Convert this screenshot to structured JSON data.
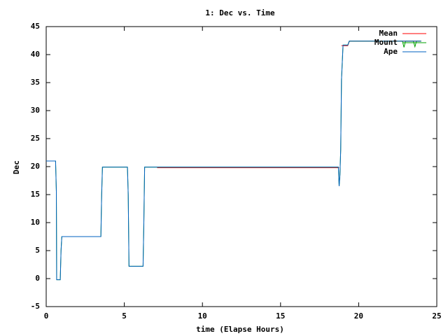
{
  "chart_data": {
    "type": "line",
    "title": "1: Dec vs. Time",
    "x_label": "time (Elapse Hours)",
    "y_label": "Dec",
    "x": [
      0,
      0.6,
      0.65,
      0.67,
      0.9,
      0.95,
      1.0,
      3.5,
      3.55,
      3.6,
      5.2,
      5.25,
      5.3,
      6.2,
      6.25,
      6.3,
      7.1,
      18.7,
      18.75,
      18.8,
      18.85,
      18.9,
      19.0,
      19.3,
      19.4,
      22.8,
      22.9,
      23.0,
      23.5,
      23.6,
      23.7,
      24.0
    ],
    "series": [
      {
        "name": "Mean",
        "color": "#ff0000",
        "values": [
          null,
          null,
          null,
          null,
          null,
          null,
          null,
          null,
          null,
          null,
          null,
          null,
          null,
          null,
          null,
          null,
          19.8,
          19.8,
          19.8,
          null,
          null,
          41.6,
          41.6,
          41.6,
          42.4,
          42.4,
          42.4,
          42.4,
          42.4,
          42.4,
          42.4,
          42.4
        ]
      },
      {
        "name": "Mount",
        "color": "#00a000",
        "values": [
          21,
          21,
          15.5,
          -0.2,
          -0.2,
          5,
          7.5,
          7.5,
          15,
          19.9,
          19.9,
          15,
          2.2,
          2.2,
          10,
          19.9,
          19.9,
          19.9,
          16.5,
          18.5,
          23,
          35.5,
          41.7,
          41.7,
          42.4,
          42.4,
          41.3,
          42.4,
          42.4,
          41.4,
          42.4,
          42.4
        ]
      },
      {
        "name": "Ape",
        "color": "#0060c0",
        "values": [
          21,
          21,
          15.5,
          -0.2,
          -0.2,
          5,
          7.5,
          7.5,
          15,
          19.9,
          19.9,
          15,
          2.2,
          2.2,
          10,
          19.9,
          19.9,
          19.9,
          16.5,
          18.5,
          23,
          35.5,
          41.7,
          41.7,
          42.4,
          42.4,
          42.4,
          42.4,
          42.4,
          42.4,
          42.4,
          42.4
        ]
      }
    ],
    "xlim": [
      0,
      25
    ],
    "xticks": [
      0,
      5,
      10,
      15,
      20,
      25
    ],
    "ylim": [
      -5,
      45
    ],
    "yticks": [
      -5,
      0,
      5,
      10,
      15,
      20,
      25,
      30,
      35,
      40,
      45
    ],
    "legend": "top-right"
  }
}
